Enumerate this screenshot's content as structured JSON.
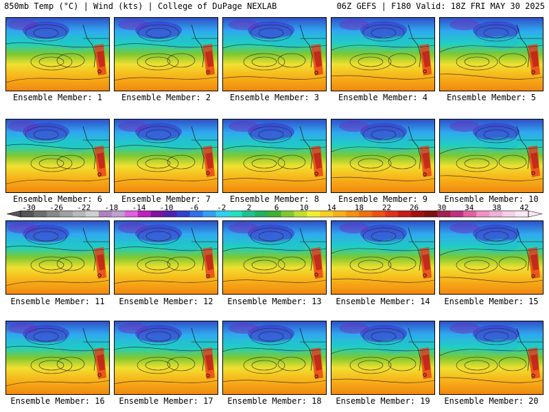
{
  "header": {
    "left": "850mb Temp (°C) | Wind (kts) | College of DuPage NEXLAB",
    "right": "06Z GEFS | F180 Valid: 18Z FRI MAY 30 2025"
  },
  "members": [
    "Ensemble Member: 1",
    "Ensemble Member: 2",
    "Ensemble Member: 3",
    "Ensemble Member: 4",
    "Ensemble Member: 5",
    "Ensemble Member: 6",
    "Ensemble Member: 7",
    "Ensemble Member: 8",
    "Ensemble Member: 9",
    "Ensemble Member: 10",
    "Ensemble Member: 11",
    "Ensemble Member: 12",
    "Ensemble Member: 13",
    "Ensemble Member: 14",
    "Ensemble Member: 15",
    "Ensemble Member: 16",
    "Ensemble Member: 17",
    "Ensemble Member: 18",
    "Ensemble Member: 19",
    "Ensemble Member: 20"
  ],
  "colorbar": {
    "ticks": [
      "-30",
      "-26",
      "-22",
      "-18",
      "-14",
      "-10",
      "-6",
      "-2",
      "2",
      "6",
      "10",
      "14",
      "18",
      "22",
      "26",
      "30",
      "34",
      "38",
      "42"
    ],
    "colors": [
      "#545454",
      "#6e6e6e",
      "#888888",
      "#a0a0a0",
      "#b8b8b8",
      "#d0d0d0",
      "#b080c0",
      "#c0a0d0",
      "#e060e0",
      "#c020c0",
      "#8010a0",
      "#5020b0",
      "#3040d0",
      "#3070f0",
      "#30a0f0",
      "#30d0f0",
      "#20e0c0",
      "#20c090",
      "#20b060",
      "#40b030",
      "#80c830",
      "#c0e030",
      "#f0f030",
      "#f8d020",
      "#f8b018",
      "#f89010",
      "#f07010",
      "#f05010",
      "#e03020",
      "#c81818",
      "#a01010",
      "#801010",
      "#a02050",
      "#c03080",
      "#e060a0",
      "#f090c0",
      "#f0b0d8",
      "#f8d0e8",
      "#ffe8f4"
    ]
  }
}
